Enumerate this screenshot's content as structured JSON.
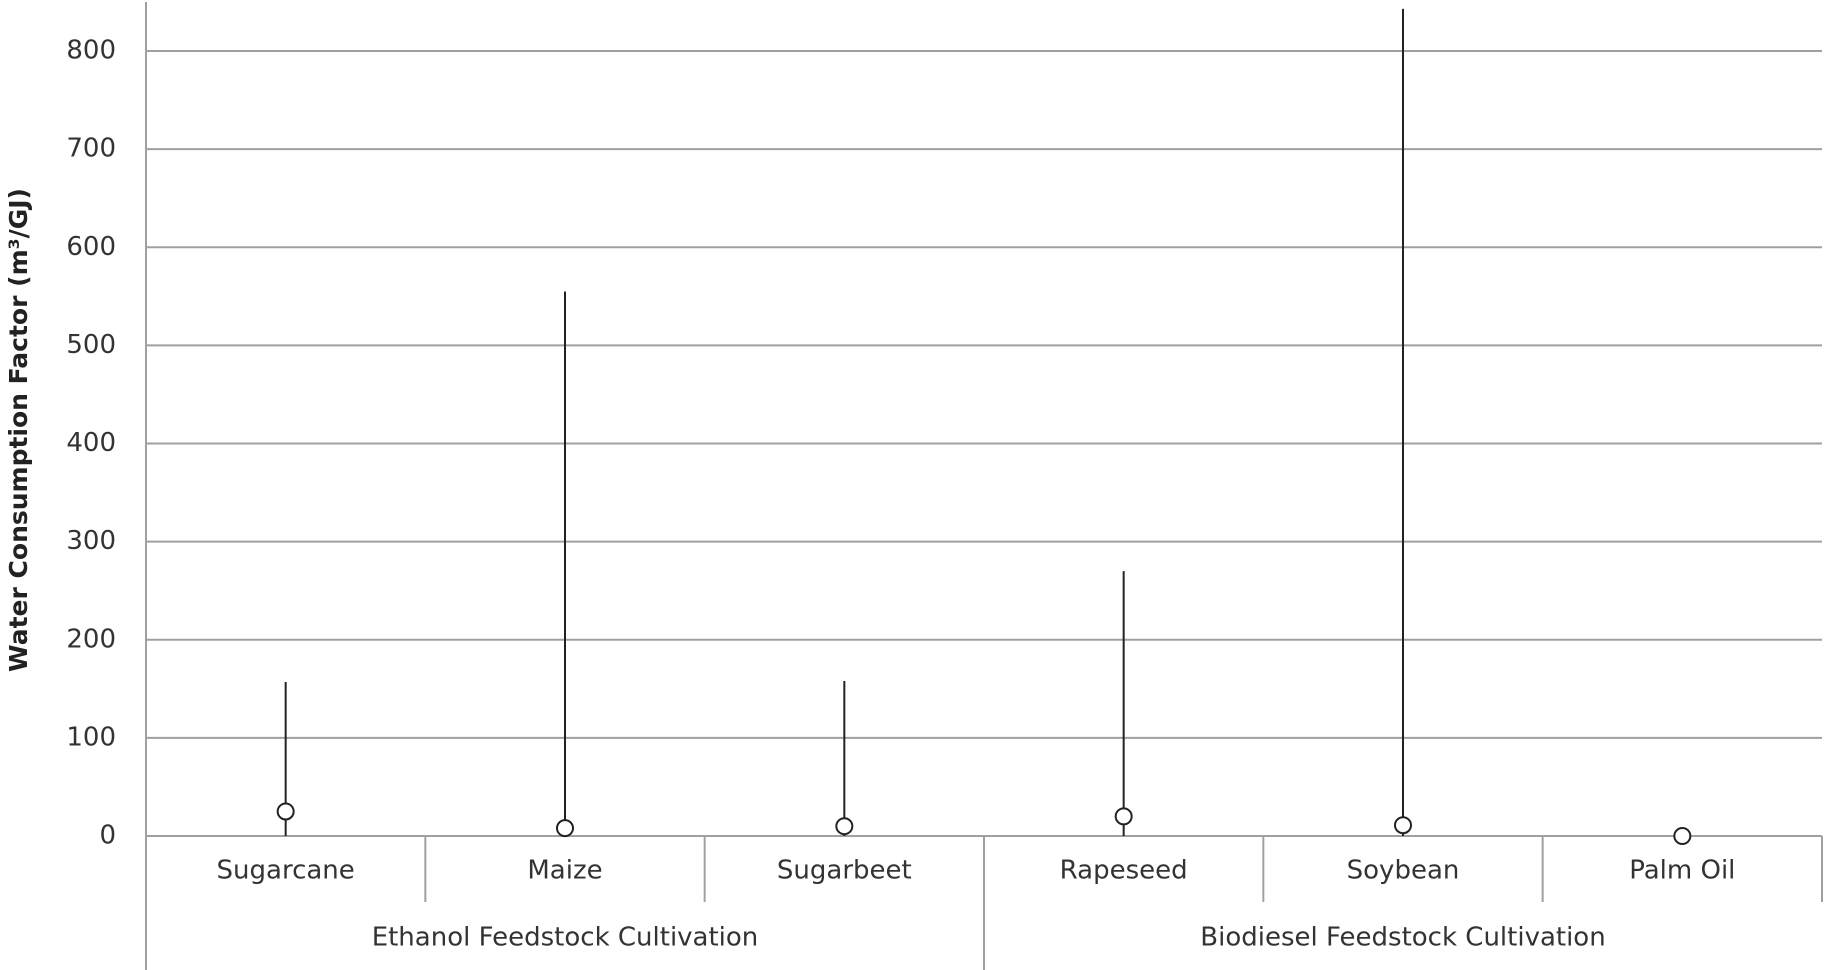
{
  "chart_data": {
    "type": "range",
    "y_label": "Water Consumption Factor (m³/GJ)",
    "categories": [
      "Sugarcane",
      "Maize",
      "Sugarbeet",
      "Rapeseed",
      "Soybean",
      "Palm Oil"
    ],
    "groups": [
      {
        "label": "Ethanol Feedstock Cultivation",
        "count": 3
      },
      {
        "label": "Biodiesel Feedstock Cultivation",
        "count": 3
      }
    ],
    "values": [
      25,
      8,
      10,
      20,
      11,
      0
    ],
    "lows": [
      0,
      0,
      0,
      0,
      0,
      0
    ],
    "highs": [
      157,
      555,
      158,
      270,
      843,
      0
    ],
    "color": "#222222",
    "ylim": [
      0,
      850
    ],
    "yticks": [
      0,
      100,
      200,
      300,
      400,
      500,
      600,
      700,
      800
    ],
    "grid": true
  }
}
